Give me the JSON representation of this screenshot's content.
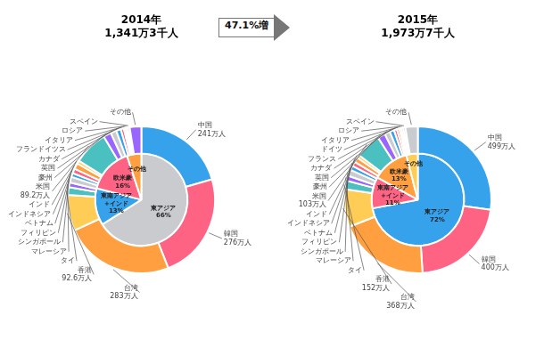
{
  "chart_data": [
    {
      "type": "doughnut",
      "title": "2014年\n1,341万3千人",
      "series": [
        {
          "categories": [
            "東アジア\n66%",
            "東南アジア\n+インド\n13%",
            "欧米豪\n16%",
            "その他"
          ],
          "values": [
            66,
            13,
            16,
            5
          ]
        },
        {
          "categories": [
            "中国\n241万人",
            "韓国\n276万人",
            "台湾\n283万人",
            "香港\n92.6万人",
            "タイ",
            "マレーシア",
            "シンガポール",
            "フィリピン",
            "ベトナム",
            "インドネシア",
            "インド",
            "米国\n89.2万人",
            "豪州",
            "英国",
            "カナダ",
            "フランドイツス",
            "イタリア",
            "ロシア",
            "スペイン",
            "その他"
          ],
          "values": [
            241,
            276,
            283,
            92.6,
            20,
            12,
            15,
            10,
            12,
            15,
            8,
            89.2,
            20,
            15,
            12,
            8,
            5,
            5,
            5,
            30
          ]
        }
      ]
    },
    {
      "type": "doughnut",
      "title": "2015年\n1,973万7千人",
      "annotations": [
        "47.1%増"
      ],
      "series": [
        {
          "categories": [
            "東アジア\n72%",
            "東南アジア\n+インド\n11%",
            "欧米豪\n13%",
            "その他"
          ],
          "values": [
            72,
            11,
            13,
            4
          ]
        },
        {
          "categories": [
            "中国\n499万人",
            "韓国\n400万人",
            "台湾\n368万人",
            "香港\n152万人",
            "タイ",
            "マレーシア",
            "シンガポール",
            "フィリピン",
            "ベトナム",
            "インドネシア",
            "インド",
            "米国\n103万人",
            "豪州",
            "英国",
            "カナダ",
            "フランス",
            "ドイツ",
            "イタリア",
            "ロシア",
            "スペイン",
            "その他"
          ],
          "values": [
            499,
            400,
            368,
            152,
            35,
            20,
            25,
            18,
            18,
            20,
            12,
            103,
            30,
            22,
            18,
            12,
            10,
            8,
            8,
            8,
            50
          ]
        }
      ]
    }
  ]
}
